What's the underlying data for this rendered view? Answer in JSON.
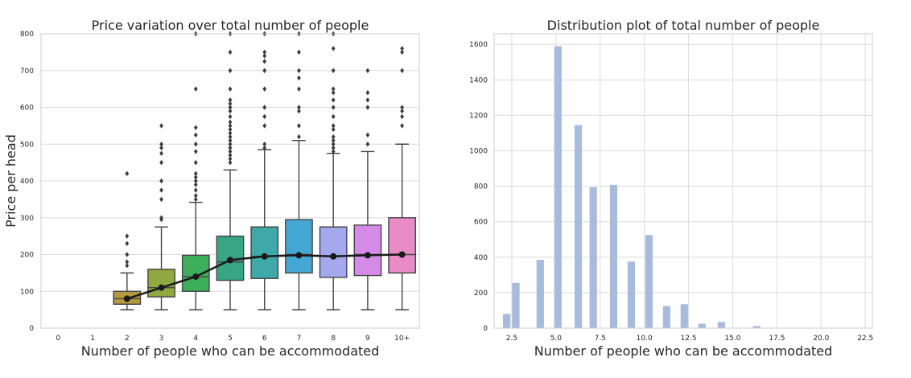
{
  "chart_data": [
    {
      "type": "box",
      "title": "Price variation over total number of people",
      "xlabel": "Number of people who can be accommodated",
      "ylabel": "Price per head",
      "ylim": [
        0,
        800
      ],
      "yticks": [
        0,
        100,
        200,
        300,
        400,
        500,
        600,
        700,
        800
      ],
      "categories": [
        "0",
        "1",
        "2",
        "3",
        "4",
        "5",
        "6",
        "7",
        "8",
        "9",
        "10+"
      ],
      "boxes": [
        null,
        null,
        {
          "whisker_low": 50,
          "q1": 65,
          "median": 80,
          "q3": 100,
          "whisker_high": 150,
          "outliers": [
            170,
            180,
            200,
            230,
            250,
            420
          ],
          "color": "#b59a3f"
        },
        {
          "whisker_low": 50,
          "q1": 85,
          "median": 110,
          "q3": 160,
          "whisker_high": 275,
          "outliers": [
            295,
            300,
            350,
            375,
            400,
            450,
            475,
            490,
            500,
            550
          ],
          "color": "#8fa840"
        },
        {
          "whisker_low": 50,
          "q1": 100,
          "median": 140,
          "q3": 198,
          "whisker_high": 342,
          "outliers": [
            350,
            360,
            375,
            390,
            400,
            410,
            420,
            450,
            480,
            500,
            525,
            545,
            650,
            800
          ],
          "color": "#3daf5c"
        },
        {
          "whisker_low": 50,
          "q1": 130,
          "median": 180,
          "q3": 250,
          "whisker_high": 430,
          "outliers": [
            450,
            460,
            470,
            480,
            490,
            500,
            510,
            520,
            530,
            540,
            550,
            560,
            575,
            590,
            600,
            610,
            620,
            650,
            700,
            750,
            800
          ],
          "color": "#39a585"
        },
        {
          "whisker_low": 50,
          "q1": 135,
          "median": 195,
          "q3": 275,
          "whisker_high": 485,
          "outliers": [
            490,
            500,
            550,
            575,
            600,
            650,
            700,
            725,
            740,
            750,
            800
          ],
          "color": "#3fa8a8"
        },
        {
          "whisker_low": 50,
          "q1": 150,
          "median": 200,
          "q3": 295,
          "whisker_high": 510,
          "outliers": [
            520,
            550,
            590,
            600,
            650,
            680,
            700,
            750,
            800
          ],
          "color": "#45a8d4"
        },
        {
          "whisker_low": 50,
          "q1": 138,
          "median": 195,
          "q3": 275,
          "whisker_high": 475,
          "outliers": [
            480,
            490,
            500,
            510,
            520,
            540,
            550,
            575,
            600,
            620,
            640,
            650,
            700,
            760,
            800
          ],
          "color": "#a4a9ed"
        },
        {
          "whisker_low": 50,
          "q1": 143,
          "median": 200,
          "q3": 280,
          "whisker_high": 480,
          "outliers": [
            500,
            525,
            600,
            620,
            640,
            700
          ],
          "color": "#d58ce8"
        },
        {
          "whisker_low": 50,
          "q1": 150,
          "median": 200,
          "q3": 300,
          "whisker_high": 500,
          "outliers": [
            550,
            575,
            590,
            600,
            700,
            750,
            760
          ],
          "color": "#e88bc6"
        }
      ],
      "mean_line": {
        "x": [
          "2",
          "3",
          "4",
          "5",
          "6",
          "7",
          "8",
          "9",
          "10+"
        ],
        "values": [
          80,
          110,
          140,
          185,
          195,
          198,
          195,
          198,
          200
        ],
        "color": "#1a1a1a"
      }
    },
    {
      "type": "bar",
      "title": "Distribution plot of total number of people",
      "xlabel": "Number of people who can be accommodated",
      "ylabel": "",
      "xlim": [
        1.5,
        22.9
      ],
      "ylim": [
        0,
        1660
      ],
      "xticks": [
        "2.5",
        "5.0",
        "7.5",
        "10.0",
        "12.5",
        "15.0",
        "17.5",
        "20.0",
        "22.5"
      ],
      "yticks": [
        "0",
        "200",
        "400",
        "600",
        "800",
        "1000",
        "1200",
        "1400",
        "1600"
      ],
      "bins": [
        {
          "x0": 2.0,
          "x1": 2.42,
          "value": 80
        },
        {
          "x0": 2.52,
          "x1": 2.94,
          "value": 255
        },
        {
          "x0": 3.9,
          "x1": 4.32,
          "value": 385
        },
        {
          "x0": 4.9,
          "x1": 5.32,
          "value": 1590
        },
        {
          "x0": 6.05,
          "x1": 6.47,
          "value": 1145
        },
        {
          "x0": 6.9,
          "x1": 7.32,
          "value": 795
        },
        {
          "x0": 8.05,
          "x1": 8.47,
          "value": 808
        },
        {
          "x0": 9.05,
          "x1": 9.47,
          "value": 375
        },
        {
          "x0": 10.05,
          "x1": 10.47,
          "value": 525
        },
        {
          "x0": 11.05,
          "x1": 11.47,
          "value": 125
        },
        {
          "x0": 12.05,
          "x1": 12.47,
          "value": 135
        },
        {
          "x0": 13.05,
          "x1": 13.47,
          "value": 25
        },
        {
          "x0": 14.15,
          "x1": 14.57,
          "value": 35
        },
        {
          "x0": 16.15,
          "x1": 16.57,
          "value": 12
        }
      ],
      "bar_color": "#a9bbdd"
    }
  ]
}
